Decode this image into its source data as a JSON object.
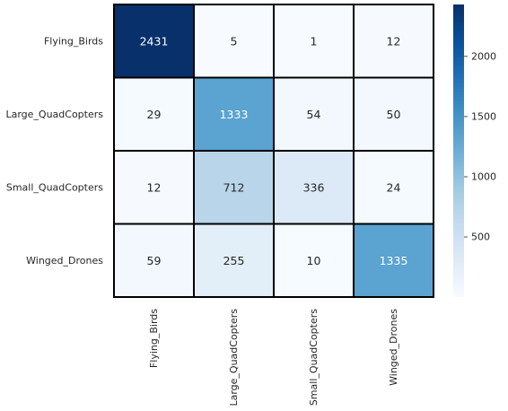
{
  "chart_data": {
    "type": "heatmap",
    "title": "",
    "xlabel": "",
    "ylabel": "",
    "rows": [
      "Flying_Birds",
      "Large_QuadCopters",
      "Small_QuadCopters",
      "Winged_Drones"
    ],
    "cols": [
      "Flying_Birds",
      "Large_QuadCopters",
      "Small_QuadCopters",
      "Winged_Drones"
    ],
    "values": [
      [
        2431,
        5,
        1,
        12
      ],
      [
        29,
        1333,
        54,
        50
      ],
      [
        12,
        712,
        336,
        24
      ],
      [
        59,
        255,
        10,
        1335
      ]
    ],
    "colorscale": "Blues",
    "vmin": 1,
    "vmax": 2431,
    "colorbar_ticks": [
      500,
      1000,
      1500,
      2000
    ],
    "annotate": true,
    "cell_border_color": "#000000",
    "grid": false,
    "colorbar_position": "right"
  }
}
